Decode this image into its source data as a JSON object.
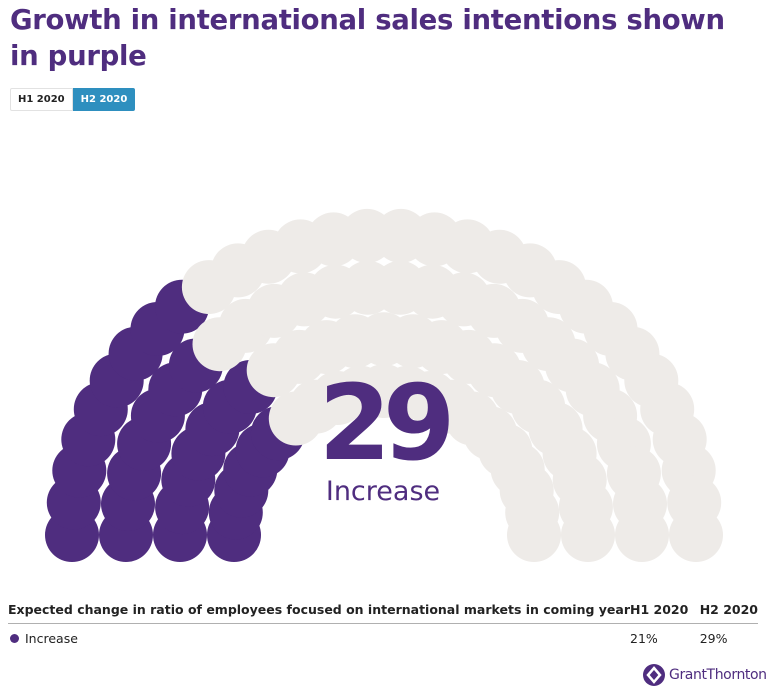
{
  "title": "Growth in international sales intentions shown in purple",
  "tabs": [
    {
      "label": "H1 2020",
      "active": false
    },
    {
      "label": "H2 2020",
      "active": true
    }
  ],
  "chart_data": {
    "type": "parliament",
    "total": 100,
    "increase_value": 29,
    "center_label": "29",
    "center_sublabel": "Increase",
    "colors": {
      "increase": "#4f2d7f",
      "other": "#eeebe8"
    }
  },
  "table": {
    "headers": [
      "Expected change in ratio of employees focused on international markets in coming year",
      "H1 2020",
      "H2 2020"
    ],
    "rows": [
      {
        "label": "Increase",
        "h1": "21%",
        "h2": "29%"
      }
    ]
  },
  "logo": {
    "text": "GrantThornton",
    "color": "#4f2d7f"
  }
}
